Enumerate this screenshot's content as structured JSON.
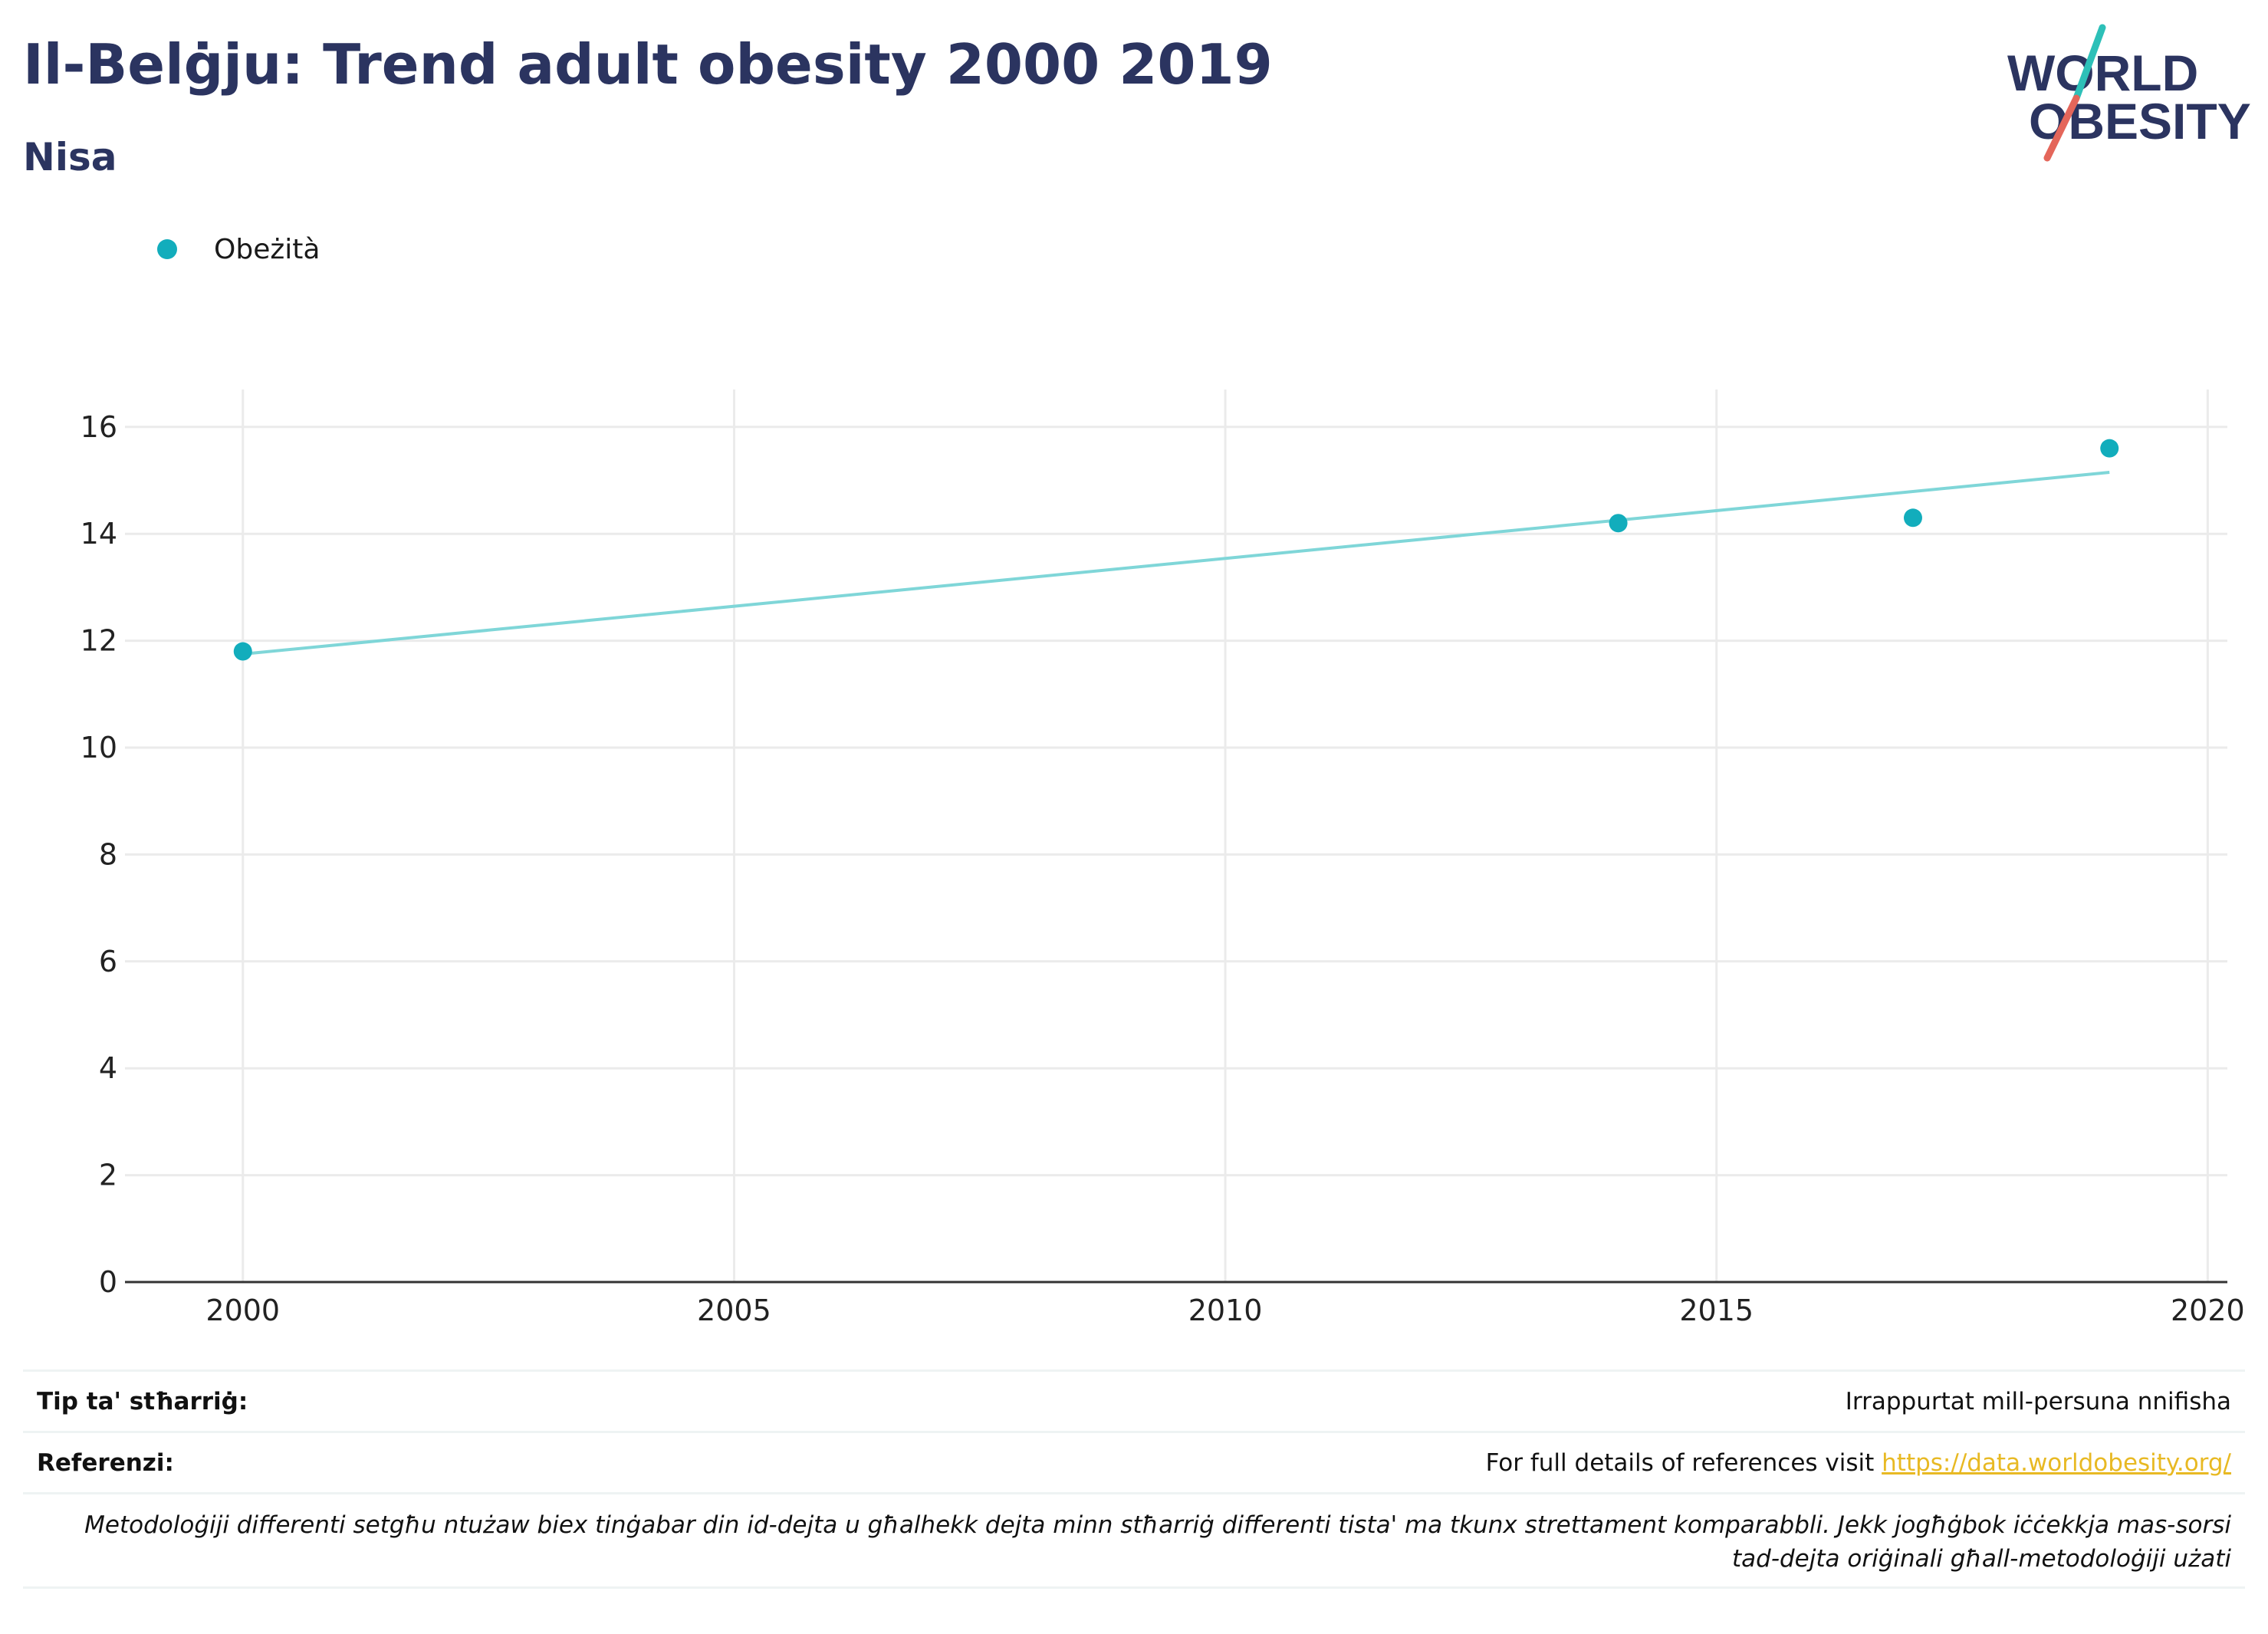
{
  "header": {
    "title": "Il-Belġju: Trend adult obesity 2000 2019",
    "subtitle": "Nisa"
  },
  "logo": {
    "line1": "WORLD",
    "line2": "OBESITY",
    "colors": {
      "text": "#2b3460",
      "slash_teal": "#2dc0b8",
      "slash_red": "#e4665a"
    }
  },
  "legend": {
    "label": "Obeżità"
  },
  "colors": {
    "marker": "#12adbc",
    "trend_line": "#7fd6d8",
    "grid": "#ebebeb",
    "axis": "#333333",
    "title": "#2b3460",
    "link": "#e8b923"
  },
  "chart_data": {
    "type": "scatter",
    "series": [
      {
        "name": "Obeżità",
        "x": [
          2000,
          2014,
          2017,
          2019
        ],
        "y": [
          11.8,
          14.2,
          14.3,
          15.6
        ]
      }
    ],
    "trend_line": {
      "x": [
        2000,
        2019
      ],
      "y": [
        11.75,
        15.15
      ]
    },
    "xlim": [
      1998.8,
      2020.2
    ],
    "ylim": [
      0,
      16.7
    ],
    "x_ticks": [
      2000,
      2005,
      2010,
      2015,
      2020
    ],
    "y_ticks": [
      0,
      2,
      4,
      6,
      8,
      10,
      12,
      14,
      16
    ],
    "grid": true,
    "legend_position": "top-left",
    "xlabel": "",
    "ylabel": ""
  },
  "footer": {
    "type_label": "Tip ta' stħarriġ:",
    "type_value": "Irrappurtat mill-persuna nnifisha",
    "references_label": "Referenzi:",
    "references_text": "For full details of references visit ",
    "references_link": "https://data.worldobesity.org/",
    "note": "Metodoloġiji differenti setgħu ntużaw biex tinġabar din id-dejta u għalhekk dejta minn stħarriġ differenti tista' ma tkunx strettament komparabbli. Jekk jogħġbok iċċekkja mas-sorsi tad-dejta oriġinali għall-metodoloġiji użati"
  }
}
